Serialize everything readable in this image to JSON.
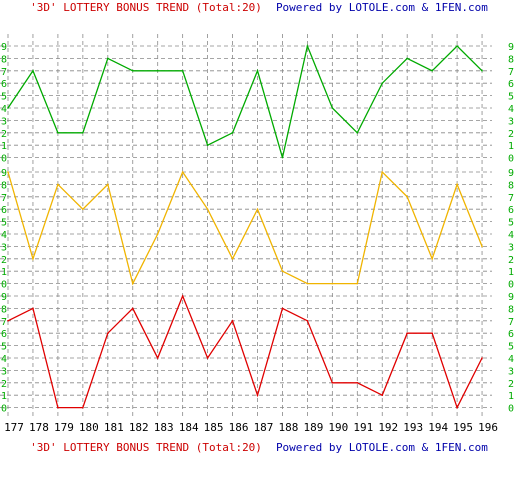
{
  "header": {
    "title_part": "'3D' LOTTERY BONUS TREND (Total:20)",
    "powered_part": "Powered by LOTOLE.com & 1FEN.com"
  },
  "footer": {
    "title_part": "'3D' LOTTERY BONUS TREND (Total:20)",
    "powered_part": "Powered by LOTOLE.com & 1FEN.com"
  },
  "chart_data": {
    "type": "line",
    "title": "'3D' LOTTERY BONUS TREND (Total:20)",
    "categories": [
      "177",
      "178",
      "179",
      "180",
      "181",
      "182",
      "183",
      "184",
      "185",
      "186",
      "187",
      "188",
      "189",
      "190",
      "191",
      "192",
      "193",
      "194",
      "195",
      "196"
    ],
    "ylim": [
      0,
      9
    ],
    "y_ticks": [
      "0",
      "1",
      "2",
      "3",
      "4",
      "5",
      "6",
      "7",
      "8",
      "9"
    ],
    "grid": true,
    "panels": [
      {
        "color": "#00aa00",
        "values": [
          4,
          7,
          2,
          2,
          8,
          7,
          7,
          7,
          1,
          2,
          7,
          0,
          9,
          4,
          2,
          6,
          8,
          7,
          9,
          7
        ]
      },
      {
        "color": "#f0b400",
        "values": [
          9,
          2,
          8,
          6,
          8,
          0,
          4,
          9,
          6,
          2,
          6,
          1,
          0,
          0,
          0,
          9,
          7,
          2,
          8,
          3
        ]
      },
      {
        "color": "#e00000",
        "values": [
          7,
          8,
          0,
          0,
          6,
          8,
          4,
          9,
          4,
          7,
          1,
          8,
          7,
          2,
          2,
          1,
          6,
          6,
          0,
          4
        ]
      }
    ],
    "colors": {
      "title": "#cc0000",
      "powered": "#0000aa",
      "axis_labels": "#000000",
      "tick_labels": "#00aa00",
      "background": "#ffffff",
      "grid": "#888888"
    }
  }
}
